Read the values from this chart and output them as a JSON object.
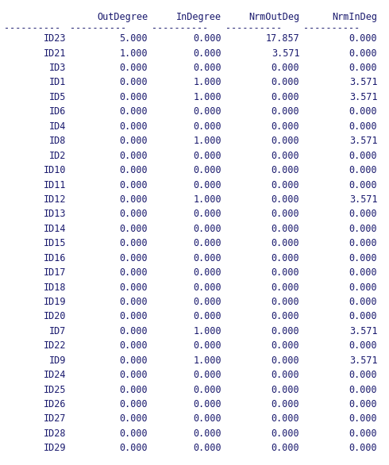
{
  "columns": [
    "OutDegree",
    "InDegree",
    "NrmOutDeg",
    "NrmInDeg"
  ],
  "rows": [
    [
      "ID23",
      "5.000",
      "0.000",
      "17.857",
      "0.000"
    ],
    [
      "ID21",
      "1.000",
      "0.000",
      "3.571",
      "0.000"
    ],
    [
      "ID3",
      "0.000",
      "0.000",
      "0.000",
      "0.000"
    ],
    [
      "ID1",
      "0.000",
      "1.000",
      "0.000",
      "3.571"
    ],
    [
      "ID5",
      "0.000",
      "1.000",
      "0.000",
      "3.571"
    ],
    [
      "ID6",
      "0.000",
      "0.000",
      "0.000",
      "0.000"
    ],
    [
      "ID4",
      "0.000",
      "0.000",
      "0.000",
      "0.000"
    ],
    [
      "ID8",
      "0.000",
      "1.000",
      "0.000",
      "3.571"
    ],
    [
      "ID2",
      "0.000",
      "0.000",
      "0.000",
      "0.000"
    ],
    [
      "ID10",
      "0.000",
      "0.000",
      "0.000",
      "0.000"
    ],
    [
      "ID11",
      "0.000",
      "0.000",
      "0.000",
      "0.000"
    ],
    [
      "ID12",
      "0.000",
      "1.000",
      "0.000",
      "3.571"
    ],
    [
      "ID13",
      "0.000",
      "0.000",
      "0.000",
      "0.000"
    ],
    [
      "ID14",
      "0.000",
      "0.000",
      "0.000",
      "0.000"
    ],
    [
      "ID15",
      "0.000",
      "0.000",
      "0.000",
      "0.000"
    ],
    [
      "ID16",
      "0.000",
      "0.000",
      "0.000",
      "0.000"
    ],
    [
      "ID17",
      "0.000",
      "0.000",
      "0.000",
      "0.000"
    ],
    [
      "ID18",
      "0.000",
      "0.000",
      "0.000",
      "0.000"
    ],
    [
      "ID19",
      "0.000",
      "0.000",
      "0.000",
      "0.000"
    ],
    [
      "ID20",
      "0.000",
      "0.000",
      "0.000",
      "0.000"
    ],
    [
      "ID7",
      "0.000",
      "1.000",
      "0.000",
      "3.571"
    ],
    [
      "ID22",
      "0.000",
      "0.000",
      "0.000",
      "0.000"
    ],
    [
      "ID9",
      "0.000",
      "1.000",
      "0.000",
      "3.571"
    ],
    [
      "ID24",
      "0.000",
      "0.000",
      "0.000",
      "0.000"
    ],
    [
      "ID25",
      "0.000",
      "0.000",
      "0.000",
      "0.000"
    ],
    [
      "ID26",
      "0.000",
      "0.000",
      "0.000",
      "0.000"
    ],
    [
      "ID27",
      "0.000",
      "0.000",
      "0.000",
      "0.000"
    ],
    [
      "ID28",
      "0.000",
      "0.000",
      "0.000",
      "0.000"
    ],
    [
      "ID29",
      "0.000",
      "0.000",
      "0.000",
      "0.000"
    ]
  ],
  "bg_color": "#ffffff",
  "text_color": "#1a1a6e",
  "font_size": 8.5,
  "fig_width": 4.9,
  "fig_height": 5.86,
  "dpi": 100
}
